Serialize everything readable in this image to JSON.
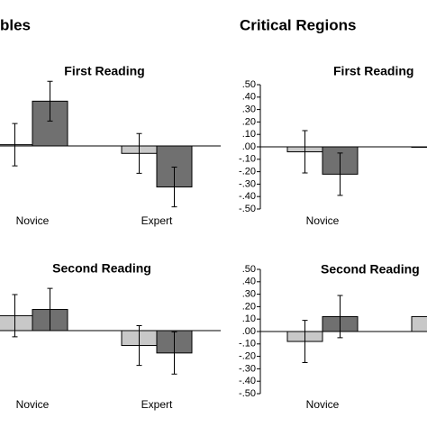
{
  "headers": [
    "bles",
    "Critical Regions"
  ],
  "chart_data": [
    {
      "type": "bar",
      "title": "First Reading",
      "categories": [
        "Novice",
        "Expert"
      ],
      "ylim": [
        -0.5,
        0.5
      ],
      "series": [
        {
          "color": "#c8c8c8",
          "values": [
            0.01,
            -0.06
          ],
          "errors": [
            0.17,
            0.16
          ]
        },
        {
          "color": "#707070",
          "values": [
            0.36,
            -0.33
          ],
          "errors": [
            0.16,
            0.16
          ]
        }
      ]
    },
    {
      "type": "bar",
      "title": "First Reading",
      "categories": [
        "Novice",
        null
      ],
      "ylim": [
        -0.5,
        0.5
      ],
      "yticks": [
        {
          "value": 0.5,
          "label": ".50"
        },
        {
          "value": 0.4,
          "label": ".40"
        },
        {
          "value": 0.3,
          "label": ".30"
        },
        {
          "value": 0.2,
          "label": ".20"
        },
        {
          "value": 0.1,
          "label": ".10"
        },
        {
          "value": 0,
          "label": ".00"
        },
        {
          "value": -0.1,
          "label": "-.10"
        },
        {
          "value": -0.2,
          "label": "-.20"
        },
        {
          "value": -0.3,
          "label": "-.30"
        },
        {
          "value": -0.4,
          "label": "-.40"
        },
        {
          "value": -0.5,
          "label": "-.50"
        }
      ],
      "series": [
        {
          "color": "#c8c8c8",
          "values": [
            -0.04,
            0.0
          ],
          "errors": [
            0.17,
            null
          ]
        },
        {
          "color": "#707070",
          "values": [
            -0.22,
            null
          ],
          "errors": [
            0.17,
            null
          ]
        }
      ]
    },
    {
      "type": "bar",
      "title": "Second Reading",
      "categories": [
        "Novice",
        "Expert"
      ],
      "ylim": [
        -0.5,
        0.5
      ],
      "series": [
        {
          "color": "#c8c8c8",
          "values": [
            0.12,
            -0.12
          ],
          "errors": [
            0.17,
            0.16
          ]
        },
        {
          "color": "#707070",
          "values": [
            0.17,
            -0.18
          ],
          "errors": [
            0.17,
            0.17
          ]
        }
      ]
    },
    {
      "type": "bar",
      "title": "Second Reading",
      "categories": [
        "Novice",
        null
      ],
      "ylim": [
        -0.5,
        0.5
      ],
      "yticks": [
        {
          "value": 0.5,
          "label": ".50"
        },
        {
          "value": 0.4,
          "label": ".40"
        },
        {
          "value": 0.3,
          "label": ".30"
        },
        {
          "value": 0.2,
          "label": ".20"
        },
        {
          "value": 0.1,
          "label": ".10"
        },
        {
          "value": 0,
          "label": ".00"
        },
        {
          "value": -0.1,
          "label": "-.10"
        },
        {
          "value": -0.2,
          "label": "-.20"
        },
        {
          "value": -0.3,
          "label": "-.30"
        },
        {
          "value": -0.4,
          "label": "-.40"
        },
        {
          "value": -0.5,
          "label": "-.50"
        }
      ],
      "series": [
        {
          "color": "#c8c8c8",
          "values": [
            -0.08,
            0.12
          ],
          "errors": [
            0.17,
            null
          ]
        },
        {
          "color": "#707070",
          "values": [
            0.12,
            null
          ],
          "errors": [
            0.17,
            null
          ]
        }
      ]
    }
  ]
}
